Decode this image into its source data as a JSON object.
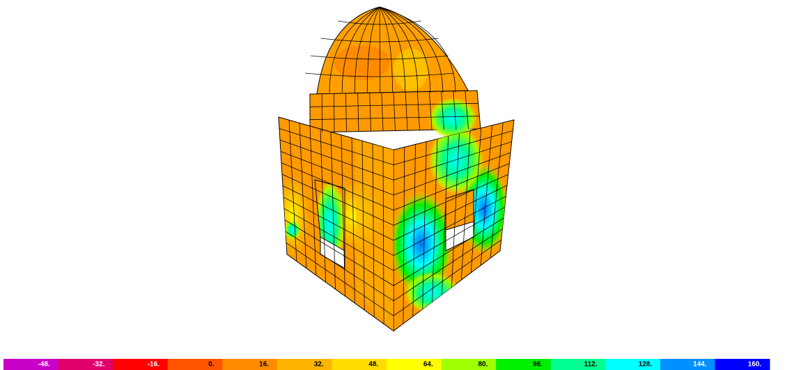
{
  "legend": {
    "items": [
      {
        "label": "-48.",
        "color": "#c800c8"
      },
      {
        "label": "-32.",
        "color": "#e0006a"
      },
      {
        "label": "-16.",
        "color": "#ff0000"
      },
      {
        "label": "0.",
        "color": "#ff5500"
      },
      {
        "label": "16.",
        "color": "#ff8c00"
      },
      {
        "label": "32.",
        "color": "#ffb400"
      },
      {
        "label": "48.",
        "color": "#ffdc00"
      },
      {
        "label": "64.",
        "color": "#ffff00"
      },
      {
        "label": "80.",
        "color": "#a0ff00"
      },
      {
        "label": "96.",
        "color": "#00f000"
      },
      {
        "label": "112.",
        "color": "#00ff90"
      },
      {
        "label": "128.",
        "color": "#00ffff"
      },
      {
        "label": "144.",
        "color": "#0090ff"
      },
      {
        "label": "160.",
        "color": "#0000ff"
      }
    ]
  }
}
